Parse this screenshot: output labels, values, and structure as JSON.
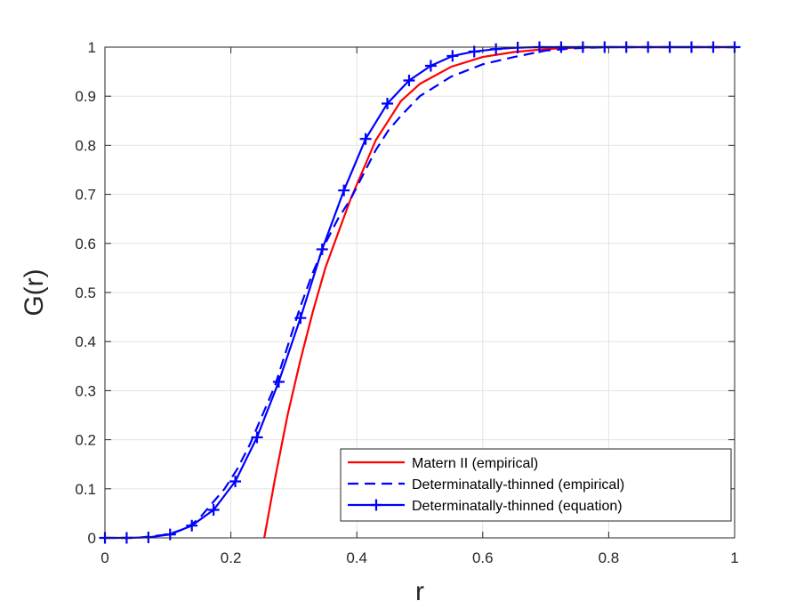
{
  "chart_data": {
    "type": "line",
    "xlabel": "r",
    "ylabel": "G(r)",
    "xlim": [
      0,
      1
    ],
    "ylim": [
      0,
      1
    ],
    "grid": true,
    "legend_position": "bottom-right",
    "x_ticks": [
      "0",
      "0.2",
      "0.4",
      "0.6",
      "0.8",
      "1"
    ],
    "y_ticks": [
      "0",
      "0.1",
      "0.2",
      "0.3",
      "0.4",
      "0.5",
      "0.6",
      "0.7",
      "0.8",
      "0.9",
      "1"
    ],
    "series": [
      {
        "name": "Matern II (empirical)",
        "color": "#ff0000",
        "style": "solid",
        "marker": "none",
        "x": [
          0.253,
          0.27,
          0.29,
          0.31,
          0.33,
          0.35,
          0.37,
          0.39,
          0.41,
          0.43,
          0.45,
          0.47,
          0.5,
          0.55,
          0.6,
          0.65,
          0.7,
          0.75,
          0.8,
          0.9,
          1.0
        ],
        "y": [
          0.0,
          0.12,
          0.25,
          0.36,
          0.46,
          0.55,
          0.62,
          0.69,
          0.75,
          0.81,
          0.85,
          0.89,
          0.925,
          0.96,
          0.98,
          0.99,
          0.996,
          0.999,
          1.0,
          1.0,
          1.0
        ]
      },
      {
        "name": "Determinatally-thinned (empirical)",
        "color": "#0000ff",
        "style": "dashed",
        "marker": "none",
        "x": [
          0.0,
          0.05,
          0.1,
          0.13,
          0.15,
          0.17,
          0.19,
          0.21,
          0.23,
          0.25,
          0.27,
          0.29,
          0.31,
          0.33,
          0.35,
          0.37,
          0.39,
          0.41,
          0.43,
          0.45,
          0.47,
          0.5,
          0.55,
          0.6,
          0.65,
          0.7,
          0.75,
          0.8,
          0.9,
          1.0
        ],
        "y": [
          0.0,
          0.0,
          0.007,
          0.02,
          0.04,
          0.07,
          0.1,
          0.14,
          0.19,
          0.25,
          0.31,
          0.39,
          0.47,
          0.54,
          0.6,
          0.65,
          0.69,
          0.74,
          0.79,
          0.83,
          0.86,
          0.9,
          0.94,
          0.965,
          0.98,
          0.993,
          0.998,
          1.0,
          1.0,
          1.0
        ]
      },
      {
        "name": "Determinatally-thinned (equation)",
        "color": "#0000ff",
        "style": "solid",
        "marker": "plus",
        "x": [
          0.0,
          0.0345,
          0.069,
          0.1035,
          0.138,
          0.1725,
          0.207,
          0.2415,
          0.276,
          0.3105,
          0.345,
          0.3795,
          0.414,
          0.4485,
          0.483,
          0.5175,
          0.552,
          0.5865,
          0.621,
          0.6555,
          0.69,
          0.7245,
          0.759,
          0.7935,
          0.828,
          0.8625,
          0.897,
          0.9315,
          0.966,
          1.0
        ],
        "y": [
          0.0,
          0.0,
          0.001,
          0.007,
          0.025,
          0.057,
          0.115,
          0.205,
          0.318,
          0.448,
          0.588,
          0.708,
          0.813,
          0.885,
          0.932,
          0.962,
          0.982,
          0.991,
          0.996,
          0.999,
          1.0,
          1.0,
          1.0,
          1.0,
          1.0,
          1.0,
          1.0,
          1.0,
          1.0,
          1.0
        ]
      }
    ]
  }
}
